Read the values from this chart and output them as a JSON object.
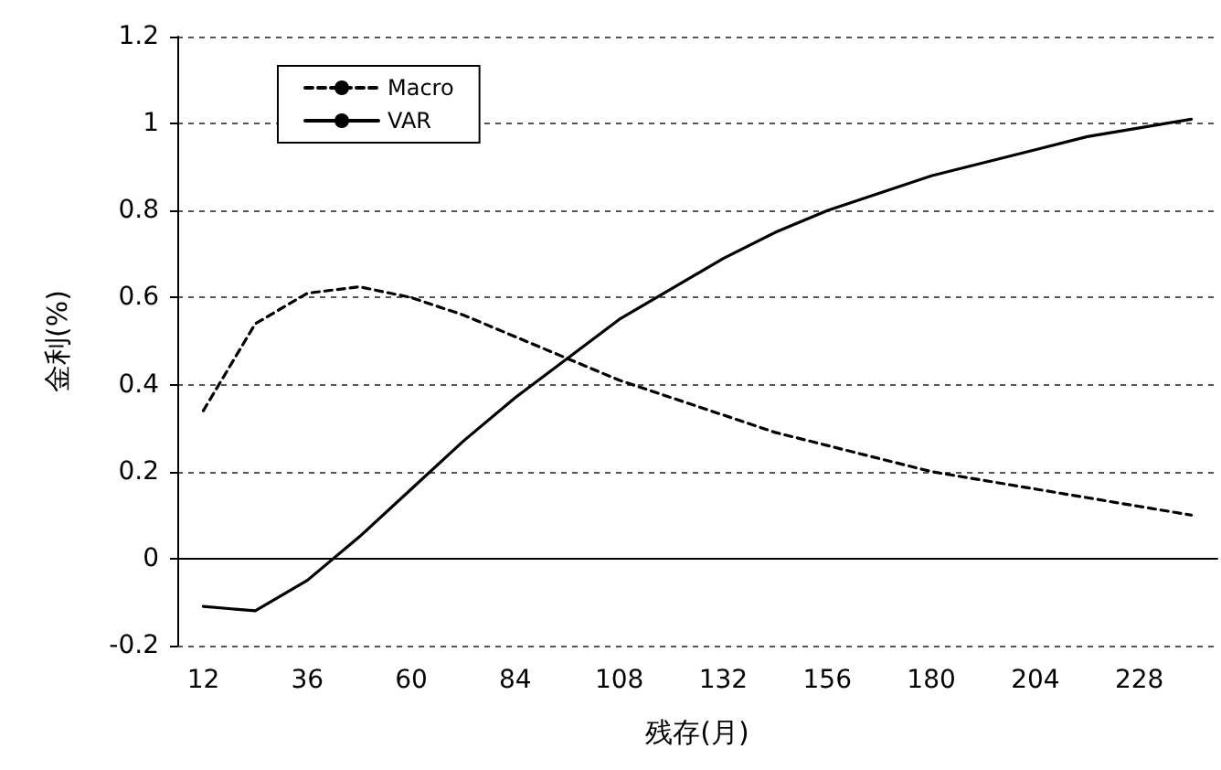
{
  "chart_data": {
    "type": "line",
    "xlabel": "残存(月)",
    "ylabel": "金利(%)",
    "categories": [
      "12",
      null,
      "36",
      null,
      "60",
      null,
      "84",
      null,
      "108",
      null,
      "132",
      null,
      "156",
      null,
      "180",
      null,
      "204",
      null,
      "228",
      null
    ],
    "series": [
      {
        "name": "Macro",
        "color": "#000000",
        "line_style": "dashed",
        "values": [
          0.34,
          0.54,
          0.61,
          0.625,
          0.6,
          0.56,
          0.51,
          0.46,
          0.41,
          0.37,
          0.33,
          0.29,
          0.26,
          0.23,
          0.2,
          0.18,
          0.16,
          0.14,
          0.12,
          0.1
        ]
      },
      {
        "name": "VAR",
        "color": "#000000",
        "line_style": "solid",
        "values": [
          -0.11,
          -0.12,
          -0.05,
          0.05,
          0.16,
          0.27,
          0.37,
          0.46,
          0.55,
          0.62,
          0.69,
          0.75,
          0.8,
          0.84,
          0.88,
          0.91,
          0.94,
          0.97,
          0.99,
          1.01
        ]
      }
    ],
    "ylim": [
      -0.2,
      1.2
    ],
    "yticks": [
      -0.2,
      0,
      0.2,
      0.4,
      0.6,
      0.8,
      1,
      1.2
    ],
    "grid": "y",
    "legend": "top left",
    "marker": "none"
  }
}
